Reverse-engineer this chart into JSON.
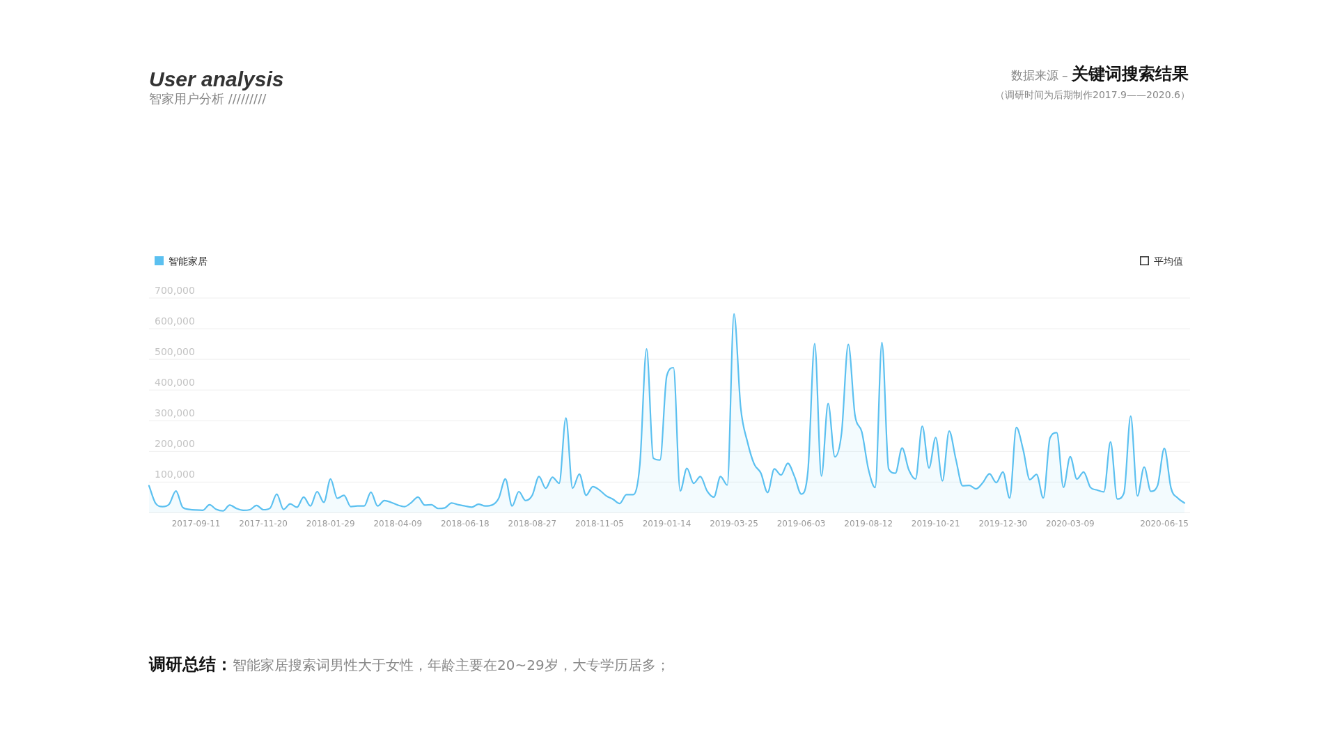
{
  "chart_data": {
    "type": "area",
    "title": "User analysis",
    "subtitle": "智家用户分析 /////////",
    "annotations": [
      "数据来源 – **关键词搜索结果**",
      "（调研时间为后期制作2017.9——2020.6）",
      "**调研总结：**智能家居搜索词男性大于女性，年龄主要在20~29岁，大专学历居多；"
    ],
    "categories": [
      null,
      null,
      null,
      null,
      null,
      null,
      null,
      "2017-09-11",
      null,
      null,
      null,
      null,
      null,
      null,
      null,
      null,
      null,
      "2017-11-20",
      null,
      null,
      null,
      null,
      null,
      null,
      null,
      null,
      null,
      "2018-01-29",
      null,
      null,
      null,
      null,
      null,
      null,
      null,
      null,
      null,
      "2018-04-09",
      null,
      null,
      null,
      null,
      null,
      null,
      null,
      null,
      null,
      "2018-06-18",
      null,
      null,
      null,
      null,
      null,
      null,
      null,
      null,
      null,
      "2018-08-27",
      null,
      null,
      null,
      null,
      null,
      null,
      null,
      null,
      null,
      "2018-11-05",
      null,
      null,
      null,
      null,
      null,
      null,
      null,
      null,
      null,
      "2019-01-14",
      null,
      null,
      null,
      null,
      null,
      null,
      null,
      null,
      null,
      "2019-03-25",
      null,
      null,
      null,
      null,
      null,
      null,
      null,
      null,
      null,
      "2019-06-03",
      null,
      null,
      null,
      null,
      null,
      null,
      null,
      null,
      null,
      "2019-08-12",
      null,
      null,
      null,
      null,
      null,
      null,
      null,
      null,
      null,
      "2019-10-21",
      null,
      null,
      null,
      null,
      null,
      null,
      null,
      null,
      null,
      "2019-12-30",
      null,
      null,
      null,
      null,
      null,
      null,
      null,
      null,
      null,
      "2020-03-09",
      null,
      null,
      null,
      null,
      null,
      null,
      null,
      null,
      null,
      null,
      null,
      null,
      null,
      "2020-06-15",
      null,
      null,
      null
    ],
    "series": [
      {
        "name": "智能家居",
        "color": "#5bc0f0",
        "values": [
          88000,
          30000,
          20000,
          28000,
          71000,
          18000,
          11000,
          9000,
          8000,
          26000,
          11000,
          6000,
          25000,
          14000,
          8000,
          10000,
          24000,
          10000,
          15000,
          61000,
          11000,
          29000,
          18000,
          51000,
          22000,
          69000,
          34000,
          110000,
          47000,
          57000,
          20000,
          22000,
          22000,
          67000,
          22000,
          40000,
          34000,
          25000,
          20000,
          33000,
          51000,
          25000,
          26000,
          14000,
          16000,
          32000,
          26000,
          22000,
          18000,
          28000,
          22000,
          25000,
          47000,
          110000,
          22000,
          69000,
          40000,
          57000,
          118000,
          80000,
          116000,
          96000,
          309000,
          80000,
          126000,
          57000,
          85000,
          74000,
          55000,
          44000,
          30000,
          59000,
          59000,
          157000,
          534000,
          178000,
          172000,
          446000,
          473000,
          71000,
          145000,
          96000,
          118000,
          71000,
          51000,
          118000,
          90000,
          648000,
          342000,
          231000,
          159000,
          129000,
          66000,
          143000,
          123000,
          161000,
          118000,
          61000,
          137000,
          551000,
          120000,
          356000,
          182000,
          260000,
          549000,
          317000,
          264000,
          141000,
          82000,
          555000,
          143000,
          129000,
          211000,
          140000,
          110000,
          282000,
          146000,
          245000,
          104000,
          266000,
          174000,
          88000,
          89000,
          78000,
          98000,
          127000,
          98000,
          133000,
          48000,
          278000,
          206000,
          108000,
          125000,
          48000,
          244000,
          261000,
          83000,
          183000,
          110000,
          133000,
          83000,
          74000,
          68000,
          231000,
          45000,
          65000,
          315000,
          55000,
          149000,
          70000,
          89000,
          210000,
          80000,
          48000,
          32000
        ]
      },
      {
        "name": "平均值",
        "color": "#333333",
        "values": [
          null,
          null,
          null,
          null,
          null,
          null,
          null,
          null,
          null,
          null,
          null,
          null,
          null,
          null,
          null,
          null,
          null,
          null,
          null,
          null,
          null,
          null,
          null,
          null,
          null,
          null,
          null,
          null,
          null,
          null,
          null,
          null,
          null,
          null,
          null,
          null,
          null,
          null,
          null,
          null,
          null,
          null,
          null,
          null,
          null,
          null,
          null,
          null,
          null,
          null,
          null,
          null,
          null,
          null,
          null,
          null,
          null,
          null,
          null,
          null,
          null,
          null,
          null,
          null,
          null,
          null,
          null,
          null,
          null,
          null,
          null,
          null,
          null,
          null,
          null,
          null,
          null,
          null,
          null,
          null,
          null,
          null,
          null,
          null,
          null,
          null,
          null,
          null,
          null,
          null,
          null,
          null,
          null,
          null,
          null,
          null,
          null,
          null,
          null,
          null,
          null,
          null,
          null,
          null,
          null,
          null,
          null,
          null,
          null,
          null,
          null,
          null,
          null,
          null,
          null,
          null,
          null,
          null,
          null,
          null,
          null,
          null,
          null,
          null,
          null,
          null,
          null,
          null,
          null,
          null,
          null,
          null,
          null,
          null,
          null,
          null,
          null,
          null,
          null,
          null,
          null,
          null,
          null,
          null,
          null,
          null,
          null,
          null,
          null,
          null,
          null,
          null,
          null,
          null,
          null
        ]
      }
    ],
    "ylim": [
      0,
      700000
    ],
    "yticks": [
      {
        "value": 100000,
        "label": "100,000"
      },
      {
        "value": 200000,
        "label": "200,000"
      },
      {
        "value": 300000,
        "label": "300,000"
      },
      {
        "value": 400000,
        "label": "400,000"
      },
      {
        "value": 500000,
        "label": "500,000"
      },
      {
        "value": 600000,
        "label": "600,000"
      },
      {
        "value": 700000,
        "label": "700,000"
      }
    ],
    "grid": "y",
    "legend": "top"
  }
}
